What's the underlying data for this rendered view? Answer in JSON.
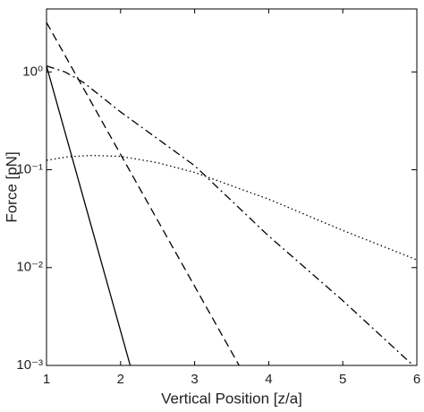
{
  "chart_data": {
    "type": "line",
    "xlabel": "Vertical Position [z/a]",
    "ylabel": "Force [pN]",
    "yscale": "log",
    "xlim": [
      1,
      6
    ],
    "xticks": [
      1,
      2,
      3,
      4,
      5,
      6
    ],
    "ylim": [
      0.001,
      4.4
    ],
    "yticks": [
      {
        "value": 0.001,
        "label": "10⁻³"
      },
      {
        "value": 0.01,
        "label": "10⁻²"
      },
      {
        "value": 0.1,
        "label": "10⁻¹"
      },
      {
        "value": 1,
        "label": "10⁰"
      }
    ],
    "series": [
      {
        "color": "#000000",
        "dash": "solid",
        "x": [
          1,
          2.13
        ],
        "values": [
          1.15,
          0.001
        ]
      },
      {
        "color": "#000000",
        "dash": "dashed",
        "x": [
          1,
          3.6
        ],
        "values": [
          3.2,
          0.001
        ]
      },
      {
        "color": "#000000",
        "dash": "dashdot",
        "x": [
          1,
          1.25,
          1.5,
          2,
          3,
          4,
          5,
          5.95
        ],
        "values": [
          1.15,
          1.0,
          0.78,
          0.39,
          0.11,
          0.021,
          0.0046,
          0.001
        ]
      },
      {
        "color": "#000000",
        "dash": "dotted",
        "x": [
          1,
          1.3,
          1.6,
          2,
          2.5,
          3,
          4,
          5,
          6
        ],
        "values": [
          0.125,
          0.136,
          0.14,
          0.137,
          0.118,
          0.094,
          0.05,
          0.024,
          0.012
        ]
      }
    ]
  }
}
